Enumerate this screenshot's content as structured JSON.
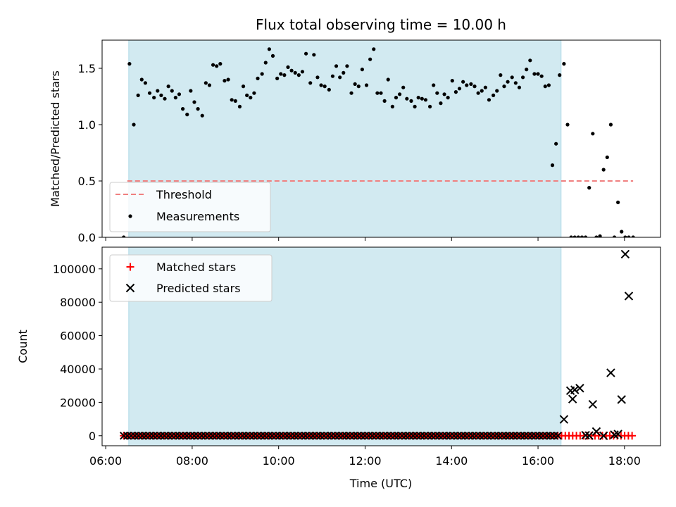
{
  "chart_data": [
    {
      "type": "scatter",
      "title": "Flux total observing time = 10.00 h",
      "ylabel": "Matched/Predicted stars",
      "xlabel": "",
      "ylim": [
        0,
        1.75
      ],
      "yticks": [
        "0.0",
        "0.5",
        "1.0",
        "1.5"
      ],
      "shaded_interval": [
        "06:32",
        "16:32"
      ],
      "colors": {
        "shade": "#add8e6",
        "threshold": "#f08080",
        "points": "#000000"
      },
      "legend": {
        "location": "lower-left",
        "entries": [
          "Threshold",
          "Measurements"
        ]
      },
      "threshold": {
        "name": "Threshold",
        "x_range": [
          "06:30",
          "18:12"
        ],
        "y": 0.5
      },
      "series": [
        {
          "name": "Measurements",
          "x": [
            "06:25",
            "06:33",
            "06:39",
            "06:45",
            "06:50",
            "06:55",
            "07:01",
            "07:07",
            "07:12",
            "07:17",
            "07:22",
            "07:27",
            "07:32",
            "07:37",
            "07:42",
            "07:47",
            "07:53",
            "07:58",
            "08:03",
            "08:08",
            "08:14",
            "08:19",
            "08:24",
            "08:29",
            "08:34",
            "08:39",
            "08:45",
            "08:50",
            "08:55",
            "09:00",
            "09:06",
            "09:11",
            "09:16",
            "09:21",
            "09:26",
            "09:31",
            "09:37",
            "09:42",
            "09:47",
            "09:52",
            "09:58",
            "10:03",
            "10:08",
            "10:13",
            "10:18",
            "10:23",
            "10:28",
            "10:33",
            "10:38",
            "10:44",
            "10:49",
            "10:54",
            "10:59",
            "11:04",
            "11:10",
            "11:15",
            "11:20",
            "11:25",
            "11:30",
            "11:35",
            "11:41",
            "11:46",
            "11:51",
            "11:56",
            "12:02",
            "12:07",
            "12:12",
            "12:17",
            "12:22",
            "12:27",
            "12:32",
            "12:38",
            "12:43",
            "12:48",
            "12:53",
            "12:58",
            "13:04",
            "13:09",
            "13:14",
            "13:19",
            "13:24",
            "13:30",
            "13:35",
            "13:40",
            "13:45",
            "13:50",
            "13:55",
            "14:01",
            "14:06",
            "14:11",
            "14:16",
            "14:21",
            "14:27",
            "14:32",
            "14:37",
            "14:42",
            "14:47",
            "14:52",
            "14:58",
            "15:03",
            "15:08",
            "15:13",
            "15:18",
            "15:24",
            "15:29",
            "15:34",
            "15:39",
            "15:44",
            "15:49",
            "15:55",
            "16:00",
            "16:05",
            "16:10",
            "16:15",
            "16:20",
            "16:25",
            "16:30",
            "16:36",
            "16:41",
            "16:46",
            "16:51",
            "16:56",
            "17:01",
            "17:06",
            "17:11",
            "17:16",
            "17:21",
            "17:26",
            "17:31",
            "17:36",
            "17:41",
            "17:46",
            "17:51",
            "17:56",
            "18:01",
            "18:06",
            "18:12"
          ],
          "y": [
            0.0,
            1.54,
            1.0,
            1.26,
            1.4,
            1.37,
            1.28,
            1.24,
            1.3,
            1.26,
            1.23,
            1.34,
            1.3,
            1.24,
            1.27,
            1.14,
            1.09,
            1.3,
            1.2,
            1.14,
            1.08,
            1.37,
            1.35,
            1.53,
            1.52,
            1.54,
            1.39,
            1.4,
            1.22,
            1.21,
            1.16,
            1.34,
            1.26,
            1.24,
            1.28,
            1.41,
            1.45,
            1.55,
            1.67,
            1.61,
            1.41,
            1.45,
            1.44,
            1.51,
            1.48,
            1.46,
            1.44,
            1.47,
            1.63,
            1.37,
            1.62,
            1.42,
            1.35,
            1.34,
            1.31,
            1.43,
            1.52,
            1.42,
            1.46,
            1.52,
            1.28,
            1.36,
            1.34,
            1.49,
            1.35,
            1.58,
            1.67,
            1.28,
            1.28,
            1.21,
            1.4,
            1.16,
            1.24,
            1.27,
            1.33,
            1.23,
            1.21,
            1.16,
            1.24,
            1.23,
            1.22,
            1.16,
            1.35,
            1.28,
            1.19,
            1.27,
            1.24,
            1.39,
            1.29,
            1.32,
            1.38,
            1.35,
            1.36,
            1.34,
            1.28,
            1.3,
            1.33,
            1.22,
            1.26,
            1.3,
            1.44,
            1.34,
            1.38,
            1.42,
            1.37,
            1.33,
            1.42,
            1.49,
            1.57,
            1.45,
            1.45,
            1.43,
            1.34,
            1.35,
            0.64,
            0.83,
            1.44,
            1.54,
            1.0,
            0.0,
            0.0,
            0.0,
            0.0,
            0.0,
            0.44,
            0.92,
            0.0,
            0.01,
            0.6,
            0.71,
            1.0,
            0.0,
            0.31,
            0.05,
            0.0,
            0.0,
            0.0
          ]
        }
      ]
    },
    {
      "type": "scatter",
      "title": "",
      "ylabel": "Count",
      "xlabel": "Time (UTC)",
      "ylim": [
        -6000,
        113000
      ],
      "yticks": [
        "0",
        "20000",
        "40000",
        "60000",
        "80000",
        "100000"
      ],
      "xticks": [
        "06:00",
        "08:00",
        "10:00",
        "12:00",
        "14:00",
        "16:00",
        "18:00"
      ],
      "xlim": [
        "05:55",
        "18:50"
      ],
      "shaded_interval": [
        "06:32",
        "16:32"
      ],
      "colors": {
        "shade": "#add8e6",
        "matched": "#ff0000",
        "predicted": "#000000"
      },
      "legend": {
        "location": "top-left",
        "entries": [
          "Matched stars",
          "Predicted stars"
        ]
      },
      "series": [
        {
          "name": "Matched stars",
          "marker": "plus",
          "x_start": "06:25",
          "x_end": "18:12",
          "step_minutes": 5.15,
          "value": 0
        },
        {
          "name": "Predicted stars",
          "marker": "cross",
          "x_start": "06:25",
          "x_end": "16:30",
          "step_minutes": 5.15,
          "value": 0,
          "extra_points": [
            {
              "x": "16:36",
              "y": 9800
            },
            {
              "x": "16:45",
              "y": 27000
            },
            {
              "x": "16:48",
              "y": 22000
            },
            {
              "x": "16:51",
              "y": 27500
            },
            {
              "x": "16:58",
              "y": 28500
            },
            {
              "x": "17:06",
              "y": 300
            },
            {
              "x": "17:11",
              "y": 100
            },
            {
              "x": "17:16",
              "y": 18800
            },
            {
              "x": "17:21",
              "y": 2500
            },
            {
              "x": "17:31",
              "y": 0
            },
            {
              "x": "17:41",
              "y": 37700
            },
            {
              "x": "17:46",
              "y": 600
            },
            {
              "x": "17:51",
              "y": 1000
            },
            {
              "x": "17:56",
              "y": 21700
            },
            {
              "x": "18:01",
              "y": 108800
            },
            {
              "x": "18:06",
              "y": 83700
            }
          ]
        }
      ]
    }
  ]
}
